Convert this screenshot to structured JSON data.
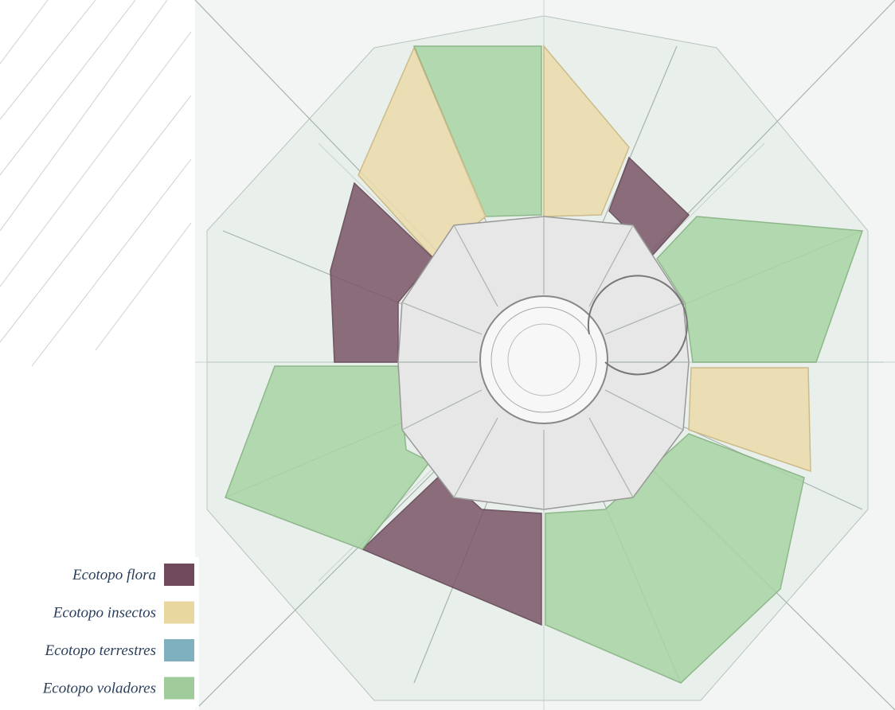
{
  "legend": {
    "items": [
      {
        "label": "Ecotopo flora",
        "color": "#6e4a5a"
      },
      {
        "label": "Ecotopo insectos",
        "color": "#e8d8a0"
      },
      {
        "label": "Ecotopo terrestres",
        "color": "#7fb0c0"
      },
      {
        "label": "Ecotopo voladores",
        "color": "#9fcc9a"
      }
    ]
  }
}
